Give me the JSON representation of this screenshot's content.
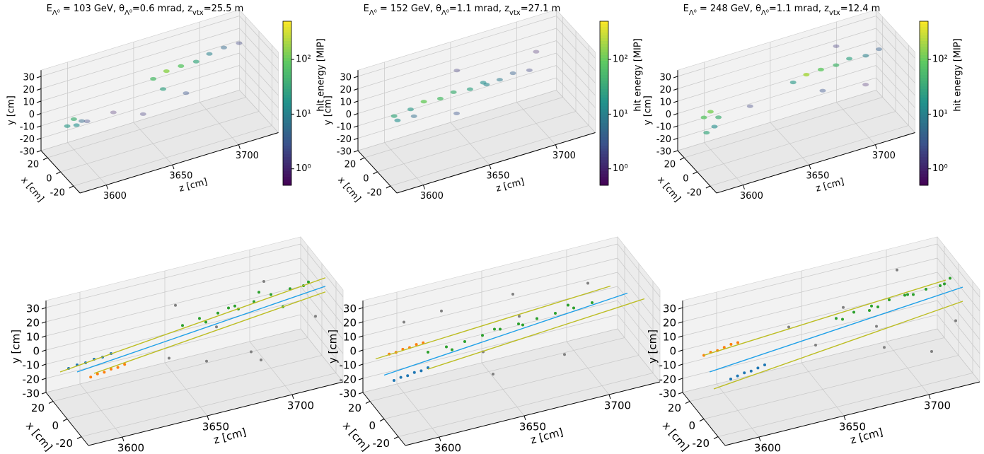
{
  "chart_data": [
    {
      "type": "scatter3d",
      "title_parts": [
        "E",
        "Λ⁰",
        " = 103 GeV, θ",
        "Λ⁰",
        "=0.6 mrad, z",
        "vtx",
        "=25.5 m"
      ],
      "xlabel": "x [cm]",
      "ylabel": "y [cm]",
      "zlabel": "z [cm]",
      "xlim": [
        -30,
        30
      ],
      "ylim": [
        -30,
        35
      ],
      "zlim": [
        3580,
        3730
      ],
      "xticks": [
        -20,
        0,
        20
      ],
      "yticks": [
        -30,
        -20,
        -10,
        0,
        10,
        20,
        30
      ],
      "zticks": [
        3600,
        3650,
        3700
      ],
      "colorbar": {
        "label": "hit energy [MIP]",
        "scale": "log",
        "colormap": "viridis",
        "lim": [
          0.5,
          500
        ],
        "ticks": [
          {
            "value": 1,
            "label": "10⁰"
          },
          {
            "value": 10,
            "label": "10¹"
          },
          {
            "value": 100,
            "label": "10²"
          }
        ]
      },
      "points": {
        "z": [
          3590,
          3595,
          3598,
          3600,
          3605,
          3620,
          3640,
          3655,
          3665,
          3675,
          3685,
          3695,
          3705,
          3715,
          3670,
          3660
        ],
        "x": [
          10,
          10,
          12,
          8,
          10,
          0,
          -5,
          10,
          10,
          8,
          5,
          5,
          3,
          0,
          -10,
          5
        ],
        "y": [
          -2,
          2,
          -5,
          0,
          -3,
          5,
          0,
          15,
          18,
          20,
          22,
          25,
          28,
          30,
          10,
          8
        ],
        "values": [
          20,
          40,
          15,
          5,
          2,
          1,
          1.5,
          60,
          150,
          80,
          30,
          10,
          5,
          2,
          3,
          25
        ]
      }
    },
    {
      "type": "scatter3d",
      "title_parts": [
        "E",
        "Λ⁰",
        " = 152 GeV, θ",
        "Λ⁰",
        "=1.1 mrad, z",
        "vtx",
        "=27.1 m"
      ],
      "xlabel": "x [cm]",
      "ylabel": "y [cm]",
      "zlabel": "z [cm]",
      "xlim": [
        -30,
        30
      ],
      "ylim": [
        -30,
        35
      ],
      "zlim": [
        3580,
        3730
      ],
      "xticks": [
        -20,
        0,
        20
      ],
      "yticks": [
        -30,
        -20,
        -10,
        0,
        10,
        20,
        30
      ],
      "zticks": [
        3600,
        3650,
        3700
      ],
      "colorbar": {
        "label": "hit energy [MIP]",
        "scale": "log",
        "colormap": "viridis",
        "lim": [
          0.5,
          500
        ],
        "ticks": [
          {
            "value": 1,
            "label": "10⁰"
          },
          {
            "value": 10,
            "label": "10¹"
          },
          {
            "value": 100,
            "label": "10²"
          }
        ]
      },
      "points": {
        "z": [
          3600,
          3610,
          3620,
          3630,
          3640,
          3650,
          3660,
          3670,
          3680,
          3690,
          3605,
          3615,
          3645,
          3700,
          3635,
          3665
        ],
        "x": [
          15,
          10,
          10,
          5,
          5,
          0,
          0,
          -5,
          -5,
          -10,
          20,
          15,
          10,
          0,
          -10,
          5
        ],
        "y": [
          0,
          5,
          8,
          10,
          12,
          14,
          16,
          18,
          20,
          22,
          -8,
          -5,
          25,
          28,
          5,
          10
        ],
        "values": [
          30,
          20,
          100,
          60,
          40,
          25,
          15,
          8,
          4,
          2,
          15,
          6,
          1.5,
          1,
          3,
          12
        ]
      }
    },
    {
      "type": "scatter3d",
      "title_parts": [
        "E",
        "Λ⁰",
        " = 248 GeV, θ",
        "Λ⁰",
        "=1.1 mrad, z",
        "vtx",
        "=12.4 m"
      ],
      "xlabel": "x [cm]",
      "ylabel": "y [cm]",
      "zlabel": "z [cm]",
      "xlim": [
        -30,
        30
      ],
      "ylim": [
        -30,
        35
      ],
      "zlim": [
        3580,
        3730
      ],
      "xticks": [
        -20,
        0,
        20
      ],
      "yticks": [
        -30,
        -20,
        -10,
        0,
        10,
        20,
        30
      ],
      "zticks": [
        3600,
        3650,
        3700
      ],
      "colorbar": {
        "label": "hit energy [MIP]",
        "scale": "log",
        "colormap": "viridis",
        "lim": [
          0.5,
          500
        ],
        "ticks": [
          {
            "value": 1,
            "label": "10⁰"
          },
          {
            "value": 10,
            "label": "10¹"
          },
          {
            "value": 100,
            "label": "10²"
          }
        ]
      },
      "points": {
        "z": [
          3590,
          3595,
          3600,
          3592,
          3598,
          3620,
          3655,
          3665,
          3675,
          3685,
          3695,
          3705,
          3715,
          3670,
          3690,
          3700
        ],
        "x": [
          10,
          10,
          8,
          10,
          10,
          0,
          5,
          5,
          3,
          0,
          0,
          -5,
          -5,
          -10,
          10,
          -15
        ],
        "y": [
          5,
          8,
          3,
          -8,
          -5,
          10,
          15,
          18,
          20,
          22,
          24,
          26,
          28,
          12,
          30,
          10
        ],
        "values": [
          80,
          120,
          40,
          30,
          15,
          2,
          20,
          200,
          90,
          50,
          25,
          10,
          4,
          3,
          1.5,
          1
        ]
      }
    },
    {
      "type": "scatter3d",
      "xlabel": "x [cm]",
      "ylabel": "y [cm]",
      "zlabel": "z [cm]",
      "xlim": [
        -30,
        30
      ],
      "ylim": [
        -30,
        35
      ],
      "zlim": [
        3580,
        3730
      ],
      "xticks": [
        -20,
        0,
        20
      ],
      "yticks": [
        -30,
        -20,
        -10,
        0,
        10,
        20,
        30
      ],
      "zticks": [
        3600,
        3650,
        3700
      ],
      "series": [
        {
          "marker": "point",
          "color": "#1f77b4",
          "z": [
            3585,
            3590,
            3595,
            3600,
            3605,
            3610
          ],
          "x": [
            10,
            10,
            10,
            10,
            10,
            10
          ],
          "y": [
            -2,
            -1,
            -1,
            0,
            0,
            1
          ]
        },
        {
          "marker": "point",
          "color": "#ff7f0e",
          "z": [
            3598,
            3602,
            3606,
            3610,
            3614,
            3618
          ],
          "x": [
            10,
            10,
            10,
            10,
            10,
            10
          ],
          "y": [
            -12,
            -11,
            -11,
            -10,
            -10,
            -9
          ]
        },
        {
          "marker": "point",
          "color": "#2ca02c",
          "z": [
            3650,
            3660,
            3670,
            3680,
            3690,
            3700,
            3710,
            3720,
            3665,
            3685,
            3705,
            3675,
            3695,
            3715
          ],
          "x": [
            5,
            5,
            3,
            3,
            0,
            0,
            -3,
            -5,
            8,
            10,
            -5,
            0,
            5,
            -10
          ],
          "y": [
            12,
            14,
            16,
            18,
            20,
            22,
            25,
            28,
            8,
            10,
            15,
            20,
            22,
            30
          ]
        },
        {
          "marker": "point",
          "color": "#808080",
          "z": [
            3640,
            3660,
            3670,
            3690,
            3700,
            3720,
            3680,
            3650
          ],
          "x": [
            0,
            -5,
            5,
            -10,
            10,
            -15,
            -20,
            15
          ],
          "y": [
            -5,
            -10,
            5,
            -15,
            25,
            10,
            0,
            20
          ]
        },
        {
          "marker": "line",
          "color": "#bcbd22",
          "z": [
            3580,
            3730
          ],
          "x": [
            10,
            -5
          ],
          "y": [
            -3,
            28
          ]
        },
        {
          "marker": "line",
          "color": "#bcbd22",
          "z": [
            3600,
            3730
          ],
          "x": [
            10,
            -5
          ],
          "y": [
            -10,
            18
          ]
        },
        {
          "marker": "line",
          "color": "#1ea0e8",
          "z": [
            3590,
            3730
          ],
          "x": [
            10,
            -5
          ],
          "y": [
            -6,
            22
          ]
        }
      ]
    },
    {
      "type": "scatter3d",
      "xlabel": "x [cm]",
      "ylabel": "y [cm]",
      "zlabel": "z [cm]",
      "xlim": [
        -30,
        30
      ],
      "ylim": [
        -30,
        35
      ],
      "zlim": [
        3580,
        3730
      ],
      "xticks": [
        -20,
        0,
        20
      ],
      "yticks": [
        -30,
        -20,
        -10,
        0,
        10,
        20,
        30
      ],
      "zticks": [
        3600,
        3650,
        3700
      ],
      "series": [
        {
          "marker": "point",
          "color": "#1f77b4",
          "z": [
            3590,
            3594,
            3598,
            3602,
            3606,
            3610
          ],
          "x": [
            10,
            10,
            10,
            10,
            10,
            10
          ],
          "y": [
            -12,
            -11,
            -11,
            -10,
            -10,
            -9
          ]
        },
        {
          "marker": "point",
          "color": "#ff7f0e",
          "z": [
            3588,
            3592,
            3596,
            3600,
            3604,
            3608
          ],
          "x": [
            12,
            12,
            12,
            12,
            12,
            12
          ],
          "y": [
            6,
            6,
            7,
            7,
            8,
            8
          ]
        },
        {
          "marker": "point",
          "color": "#2ca02c",
          "z": [
            3610,
            3620,
            3630,
            3640,
            3650,
            3660,
            3670,
            3680,
            3690,
            3700,
            3625,
            3645,
            3665,
            3685
          ],
          "x": [
            10,
            8,
            6,
            5,
            4,
            2,
            0,
            -2,
            -4,
            -6,
            12,
            0,
            8,
            -8
          ],
          "y": [
            2,
            4,
            6,
            8,
            10,
            12,
            14,
            16,
            18,
            20,
            -2,
            14,
            6,
            24
          ]
        },
        {
          "marker": "point",
          "color": "#808080",
          "z": [
            3600,
            3620,
            3640,
            3660,
            3680,
            3700,
            3630,
            3670
          ],
          "x": [
            20,
            15,
            -10,
            10,
            -15,
            0,
            -20,
            25
          ],
          "y": [
            20,
            25,
            -10,
            28,
            -5,
            30,
            15,
            0
          ]
        },
        {
          "marker": "line",
          "color": "#bcbd22",
          "z": [
            3580,
            3710
          ],
          "x": [
            12,
            -8
          ],
          "y": [
            5,
            30
          ]
        },
        {
          "marker": "line",
          "color": "#bcbd22",
          "z": [
            3610,
            3730
          ],
          "x": [
            10,
            -8
          ],
          "y": [
            -10,
            15
          ]
        },
        {
          "marker": "line",
          "color": "#1ea0e8",
          "z": [
            3585,
            3720
          ],
          "x": [
            12,
            -8
          ],
          "y": [
            -8,
            22
          ]
        }
      ]
    },
    {
      "type": "scatter3d",
      "xlabel": "x [cm]",
      "ylabel": "y [cm]",
      "zlabel": "z [cm]",
      "xlim": [
        -30,
        30
      ],
      "ylim": [
        -30,
        35
      ],
      "zlim": [
        3580,
        3730
      ],
      "xticks": [
        -20,
        0,
        20
      ],
      "yticks": [
        -30,
        -20,
        -10,
        0,
        10,
        20,
        30
      ],
      "zticks": [
        3600,
        3650,
        3700
      ],
      "series": [
        {
          "marker": "point",
          "color": "#1f77b4",
          "z": [
            3600,
            3604,
            3608,
            3612,
            3616,
            3620
          ],
          "x": [
            10,
            10,
            10,
            10,
            10,
            10
          ],
          "y": [
            -14,
            -13,
            -12,
            -12,
            -11,
            -10
          ]
        },
        {
          "marker": "point",
          "color": "#ff7f0e",
          "z": [
            3585,
            3589,
            3593,
            3597,
            3601,
            3605
          ],
          "x": [
            12,
            12,
            12,
            12,
            12,
            12
          ],
          "y": [
            6,
            7,
            7,
            8,
            9,
            9
          ]
        },
        {
          "marker": "point",
          "color": "#2ca02c",
          "z": [
            3660,
            3670,
            3680,
            3690,
            3700,
            3710,
            3720,
            3665,
            3675,
            3685,
            3695,
            3705,
            3715,
            3725
          ],
          "x": [
            5,
            4,
            3,
            2,
            0,
            -2,
            -4,
            8,
            -6,
            6,
            -8,
            4,
            -10,
            0
          ],
          "y": [
            14,
            16,
            18,
            20,
            22,
            24,
            26,
            10,
            22,
            14,
            28,
            18,
            30,
            26
          ]
        },
        {
          "marker": "point",
          "color": "#808080",
          "z": [
            3630,
            3650,
            3680,
            3700,
            3720,
            3660,
            3690,
            3710
          ],
          "x": [
            0,
            10,
            -15,
            15,
            -20,
            -5,
            20,
            -10
          ],
          "y": [
            20,
            -5,
            0,
            30,
            10,
            28,
            -10,
            -15
          ]
        },
        {
          "marker": "line",
          "color": "#bcbd22",
          "z": [
            3585,
            3720
          ],
          "x": [
            12,
            -6
          ],
          "y": [
            6,
            30
          ]
        },
        {
          "marker": "line",
          "color": "#bcbd22",
          "z": [
            3590,
            3730
          ],
          "x": [
            10,
            -6
          ],
          "y": [
            -18,
            12
          ]
        },
        {
          "marker": "line",
          "color": "#1ea0e8",
          "z": [
            3588,
            3730
          ],
          "x": [
            11,
            -6
          ],
          "y": [
            -6,
            22
          ]
        }
      ]
    }
  ]
}
